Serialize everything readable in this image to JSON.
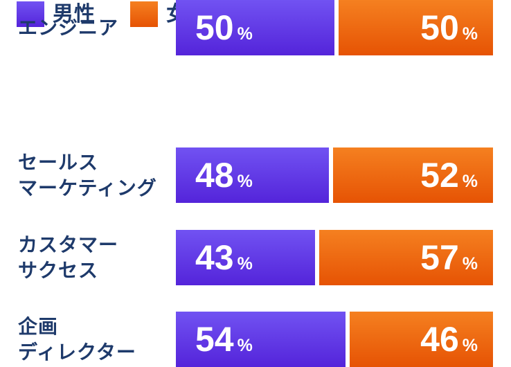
{
  "legend": {
    "items": [
      {
        "label": "男性"
      },
      {
        "label": "女性"
      }
    ]
  },
  "colors": {
    "male_top": "#7152f2",
    "male_bottom": "#5424da",
    "female_top": "#f58020",
    "female_bottom": "#e65304",
    "label_navy": "#1e3a6b",
    "value_text": "#ffffff",
    "background": "#ffffff"
  },
  "percent_sign": "%",
  "chart_data": {
    "type": "bar",
    "orientation": "horizontal",
    "stacked": true,
    "unit": "%",
    "categories": [
      "セールスマーケティング",
      "カスタマーサクセス",
      "企画ディレクター",
      "エンジニア"
    ],
    "series": [
      {
        "name": "男性",
        "values": [
          48,
          43,
          54,
          50
        ]
      },
      {
        "name": "女性",
        "values": [
          52,
          57,
          46,
          50
        ]
      }
    ],
    "xlim": [
      0,
      100
    ],
    "legend_position": "top-left",
    "value_labels": "inside",
    "grid": false
  },
  "rows": [
    {
      "label_lines": [
        "セールス",
        "マーケティング"
      ],
      "male": "48",
      "female": "52"
    },
    {
      "label_lines": [
        "カスタマー",
        "サクセス"
      ],
      "male": "43",
      "female": "57"
    },
    {
      "label_lines": [
        "企画",
        "ディレクター"
      ],
      "male": "54",
      "female": "46"
    },
    {
      "label_lines": [
        "エンジニア"
      ],
      "male": "50",
      "female": "50"
    }
  ]
}
